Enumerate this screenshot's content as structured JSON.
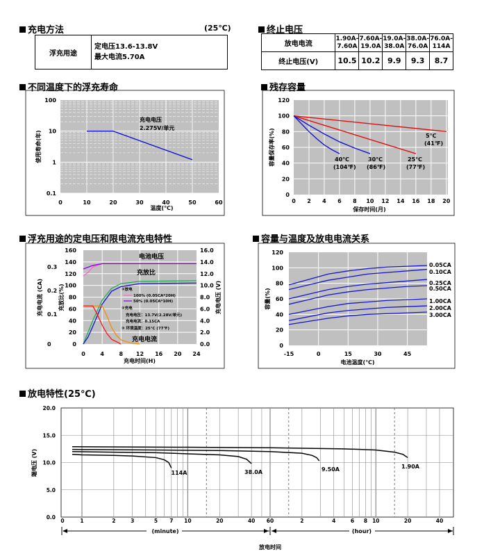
{
  "charging_method": {
    "title": "充电方法",
    "temp": "(25℃)",
    "label": "浮充用途",
    "line1": "定电压13.6-13.8V",
    "line2": "最大电流5.70A"
  },
  "cutoff_voltage": {
    "title": "终止电压",
    "row1_label": "放电电流",
    "row2_label": "终止电压(V)",
    "columns": [
      {
        "l1": "1.90A-",
        "l2": "7.60A",
        "v": "10.5"
      },
      {
        "l1": "7.60A-",
        "l2": "19.0A",
        "v": "10.2"
      },
      {
        "l1": "19.0A-",
        "l2": "38.0A",
        "v": "9.9"
      },
      {
        "l1": "38.0A-",
        "l2": "76.0A",
        "v": "9.3"
      },
      {
        "l1": "76.0A-",
        "l2": "114A",
        "v": "8.7"
      }
    ]
  },
  "chart_data": [
    {
      "id": "life",
      "title": "不同温度下的浮充寿命",
      "type": "line",
      "xlabel": "温度(℃)",
      "ylabel": "使用寿命(年)",
      "x_ticks": [
        "0",
        "10",
        "20",
        "30",
        "40",
        "50",
        "60"
      ],
      "y_ticks": [
        "100",
        "10",
        "1",
        "0.1"
      ],
      "xlim": [
        0,
        60
      ],
      "ylim": [
        0.1,
        100
      ],
      "y_scale": "log",
      "annotation_1": "充电电压",
      "annotation_2": "2.275V/单元",
      "series": [
        {
          "x": [
            10,
            20,
            50
          ],
          "y": [
            10,
            10,
            1.2
          ],
          "color": "#1414d2"
        }
      ]
    },
    {
      "id": "residual",
      "title": "残存容量",
      "type": "line",
      "xlabel": "保存时间(月)",
      "ylabel": "容量保存率(%)",
      "x_ticks": [
        "0",
        "2",
        "4",
        "6",
        "8",
        "10",
        "12",
        "14",
        "16",
        "18",
        "20"
      ],
      "y_ticks": [
        "120",
        "100",
        "80",
        "60",
        "40",
        "20",
        "0"
      ],
      "xlim": [
        0,
        20
      ],
      "ylim": [
        0,
        120
      ],
      "series": [
        {
          "name": "5℃",
          "sub": "(41℉)",
          "color": "#e01010",
          "x": [
            0,
            20
          ],
          "y": [
            100,
            80
          ]
        },
        {
          "name": "25℃",
          "sub": "(77℉)",
          "color": "#e01010",
          "x": [
            0,
            16
          ],
          "y": [
            100,
            52
          ]
        },
        {
          "name": "30℃",
          "sub": "(86℉)",
          "color": "#1414d2",
          "x": [
            0,
            2,
            4,
            6,
            8,
            10
          ],
          "y": [
            100,
            88,
            77,
            67,
            59,
            52
          ]
        },
        {
          "name": "40℃",
          "sub": "(104℉)",
          "color": "#1414d2",
          "x": [
            0,
            1,
            2,
            3,
            4,
            5,
            6
          ],
          "y": [
            100,
            90,
            80,
            71,
            63,
            57,
            52
          ]
        }
      ]
    },
    {
      "id": "float",
      "title": "浮充用途的定电压和限电流充电特性",
      "type": "line",
      "xlabel": "充电时间(H)",
      "x_ticks": [
        "0",
        "4",
        "8",
        "12",
        "16",
        "20",
        "24"
      ],
      "xlim": [
        0,
        24
      ],
      "left_ylabel": "充电电流 (CA)",
      "left2_ylabel": "充放比(%)",
      "right_ylabel": "充电电压 (V)",
      "left_ticks": [
        "160",
        "140",
        "120",
        "100",
        "80",
        "60",
        "40",
        "20",
        "0"
      ],
      "ca_ticks": [
        "0.3",
        "0.2",
        "0.1",
        "0"
      ],
      "right_ticks": [
        "16.0",
        "14.0",
        "12.0",
        "10.0",
        "8.0",
        "6.0",
        "4.0",
        "2.0",
        "0.0"
      ],
      "label_voltage": "电池电压",
      "label_ratio": "充放比",
      "label_current": "充电电流",
      "legend_title_1": "①放电",
      "legend_100": "100% (0.05CA*20H)",
      "legend_50": "50% (0.05CA*10H)",
      "legend_title_2": "②充电",
      "legend_cv": "充电电压：13.7V(2.28V/单元)",
      "legend_cc": "充电电流：0.15CA",
      "legend_temp": "③ 环境温度：25℃ (77℉)",
      "series": [
        {
          "color": "#ff66cc",
          "x": [
            0,
            1,
            2,
            4,
            24
          ],
          "y": [
            116,
            122,
            131,
            137,
            137
          ]
        },
        {
          "color": "#ff66cc",
          "x": [
            0,
            2,
            4,
            24
          ],
          "y": [
            128,
            134,
            137,
            137
          ]
        },
        {
          "color": "#8800ee",
          "x": [
            0,
            2,
            4,
            24
          ],
          "y": [
            128,
            134,
            137,
            137
          ]
        },
        {
          "color": "#22aa55",
          "x": [
            0,
            2,
            4,
            6,
            8,
            12,
            24
          ],
          "y": [
            0,
            40,
            75,
            95,
            103,
            107,
            108
          ]
        },
        {
          "color": "#1414d2",
          "x": [
            0,
            1,
            2,
            4,
            6,
            8,
            12,
            24
          ],
          "y": [
            0,
            12,
            30,
            68,
            90,
            98,
            103,
            104
          ]
        },
        {
          "color": "#ff8800",
          "x": [
            0,
            4,
            5,
            6,
            7,
            8,
            10,
            12
          ],
          "y": [
            65,
            65,
            48,
            28,
            15,
            7,
            2,
            0
          ]
        },
        {
          "color": "#ff1111",
          "x": [
            0,
            2,
            3,
            4,
            5,
            6,
            8
          ],
          "y": [
            65,
            65,
            50,
            32,
            18,
            8,
            0
          ]
        }
      ]
    },
    {
      "id": "capacity",
      "title": "容量与温度及放电电流关系",
      "type": "line",
      "xlabel": "电池温度(℃)",
      "ylabel": "容量(%)",
      "x_ticks": [
        "-15",
        "0",
        "15",
        "30",
        "45"
      ],
      "y_ticks": [
        "120",
        "100",
        "80",
        "60",
        "40",
        "20",
        "0"
      ],
      "xlim": [
        -15,
        55
      ],
      "ylim": [
        0,
        120
      ],
      "series": [
        {
          "name": "0.05CA",
          "color": "#1414d2",
          "x": [
            -15,
            -5,
            5,
            15,
            25,
            35,
            45,
            55
          ],
          "y": [
            78,
            85,
            92,
            96,
            99,
            101,
            102,
            103
          ]
        },
        {
          "name": "0.10CA",
          "color": "#1414d2",
          "x": [
            -15,
            -5,
            5,
            15,
            25,
            35,
            45,
            55
          ],
          "y": [
            72,
            78,
            84,
            88,
            92,
            94,
            96,
            98
          ]
        },
        {
          "name": "0.25CA",
          "color": "#1414d2",
          "x": [
            -15,
            -5,
            5,
            15,
            25,
            35,
            45,
            55
          ],
          "y": [
            60,
            66,
            72,
            76,
            79,
            81,
            83,
            85
          ]
        },
        {
          "name": "0.50CA",
          "color": "#1414d2",
          "x": [
            -15,
            -5,
            5,
            15,
            25,
            35,
            45,
            55
          ],
          "y": [
            53,
            59,
            65,
            69,
            72,
            74,
            76,
            77
          ]
        },
        {
          "name": "1.00CA",
          "color": "#1414d2",
          "x": [
            -15,
            -5,
            5,
            15,
            25,
            35,
            45,
            55
          ],
          "y": [
            40,
            45,
            50,
            54,
            56,
            58,
            59,
            60
          ]
        },
        {
          "name": "2.00CA",
          "color": "#1414d2",
          "x": [
            -15,
            -5,
            5,
            15,
            25,
            35,
            45,
            55
          ],
          "y": [
            32,
            37,
            42,
            45,
            47,
            49,
            50,
            51
          ]
        },
        {
          "name": "3.00CA",
          "color": "#1414d2",
          "x": [
            -15,
            -5,
            5,
            15,
            25,
            35,
            45,
            55
          ],
          "y": [
            27,
            31,
            35,
            38,
            40,
            41,
            42,
            43
          ]
        }
      ]
    },
    {
      "id": "discharge",
      "title": "放电特性(25℃)",
      "type": "line",
      "ylabel": "端电压 (V)",
      "xlabel": "放电时间",
      "y_ticks": [
        "20.0",
        "15.0",
        "10.0",
        "5.0",
        "0.0"
      ],
      "ylim": [
        0,
        20
      ],
      "x_scale": "log",
      "minute_ticks": [
        "0",
        "1",
        "2",
        "3",
        "5",
        "7",
        "10",
        "20",
        "40",
        "60"
      ],
      "hour_ticks": [
        "2",
        "4",
        "6",
        "8",
        "10",
        "20",
        "40"
      ],
      "minute_label": "(minute)",
      "hour_label": "(hour)",
      "series": [
        {
          "name": "114A",
          "color": "#000000",
          "t_min": [
            0.5,
            1,
            2,
            3,
            5,
            6,
            6.6,
            7
          ],
          "v": [
            11.5,
            11.4,
            11.3,
            11.2,
            10.9,
            10.5,
            10.0,
            9.0
          ]
        },
        {
          "name": "38.0A",
          "color": "#000000",
          "t_min": [
            0.5,
            2,
            5,
            10,
            20,
            30,
            36,
            40
          ],
          "v": [
            12.0,
            11.9,
            11.8,
            11.6,
            11.4,
            11.1,
            10.6,
            9.8
          ]
        },
        {
          "name": "9.50A",
          "color": "#000000",
          "t_min": [
            0.5,
            5,
            20,
            60,
            120,
            150,
            165,
            175
          ],
          "v": [
            12.4,
            12.3,
            12.2,
            12.0,
            11.7,
            11.3,
            10.9,
            10.3
          ]
        },
        {
          "name": "1.90A",
          "color": "#000000",
          "t_min": [
            0.5,
            10,
            60,
            300,
            600,
            900,
            1080,
            1200
          ],
          "v": [
            12.9,
            12.8,
            12.7,
            12.5,
            12.3,
            11.9,
            11.5,
            10.9
          ]
        }
      ]
    }
  ]
}
